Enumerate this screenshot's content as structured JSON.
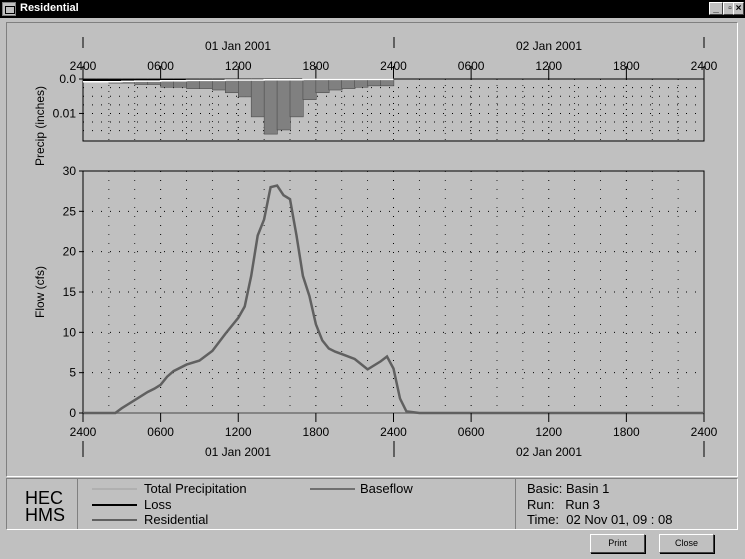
{
  "window": {
    "title": "Residential"
  },
  "top_axis": {
    "dates": [
      "01 Jan 2001",
      "02 Jan 2001"
    ],
    "tick_labels": [
      "2400",
      "0600",
      "1200",
      "1800",
      "2400",
      "0600",
      "1200",
      "1800",
      "2400"
    ]
  },
  "bottom_axis": {
    "dates": [
      "01 Jan 2001",
      "02 Jan 2001"
    ],
    "tick_labels": [
      "2400",
      "0600",
      "1200",
      "1800",
      "2400",
      "0600",
      "1200",
      "1800",
      "2400"
    ]
  },
  "legend": {
    "logo_line1": "HEC",
    "logo_line2": "HMS",
    "total_precip": "Total Precipitation",
    "loss": "Loss",
    "residential": "Residential",
    "baseflow": "Baseflow"
  },
  "info": {
    "basic": "Basic: Basin 1",
    "run": "Run:   Run 3",
    "time": "Time:  02 Nov 01, 09 : 08"
  },
  "buttons": {
    "print": "Print",
    "close": "Close"
  },
  "colors": {
    "precip_fill": "#808080",
    "loss_fill": "#000000",
    "flow_line": "#606060",
    "baseflow_line": "#707070"
  },
  "chart_data": [
    {
      "type": "area",
      "ylabel": "Precip (inches)",
      "y_ticks": [
        "0.0",
        "0.01"
      ],
      "ylim": [
        0.018,
        0.0
      ],
      "x_unit": "hours from 01 Jan 2001 00:00",
      "xlim": [
        0,
        48
      ],
      "grid": true,
      "series": [
        {
          "name": "Total Precipitation",
          "x": [
            0,
            1,
            2,
            3,
            4,
            5,
            6,
            7,
            8,
            9,
            10,
            11,
            12,
            13,
            14,
            15,
            16,
            17,
            18,
            19,
            20,
            21,
            22,
            23
          ],
          "values": [
            0.0008,
            0.0008,
            0.0012,
            0.0012,
            0.0016,
            0.0016,
            0.0024,
            0.0024,
            0.0028,
            0.0028,
            0.0032,
            0.004,
            0.0052,
            0.011,
            0.016,
            0.0148,
            0.011,
            0.006,
            0.004,
            0.0032,
            0.0028,
            0.0024,
            0.002,
            0.002
          ]
        },
        {
          "name": "Loss",
          "x": [
            0,
            1,
            2,
            3,
            4,
            5,
            6,
            7,
            8,
            9,
            10,
            11,
            12,
            13,
            14,
            15,
            16,
            17,
            18,
            19,
            20,
            21,
            22,
            23
          ],
          "values": [
            0.0008,
            0.0008,
            0.0008,
            0.0007,
            0.0006,
            0.0006,
            0.0005,
            0.0005,
            0.0004,
            0.0004,
            0.0004,
            0.0003,
            0.0003,
            0.0003,
            0.0002,
            0.0002,
            0.0002,
            0.0001,
            0.0001,
            0.0001,
            0.0001,
            0.0001,
            0.0001,
            0.0001
          ]
        }
      ]
    },
    {
      "type": "line",
      "ylabel": "Flow (cfs)",
      "y_ticks": [
        0,
        5,
        10,
        15,
        20,
        25,
        30
      ],
      "ylim": [
        0,
        30
      ],
      "xlim": [
        0,
        48
      ],
      "grid": true,
      "series": [
        {
          "name": "Residential",
          "x": [
            0,
            2.5,
            3,
            4,
            5,
            5.5,
            6,
            6.5,
            7,
            8,
            9,
            10,
            11,
            12,
            12.5,
            13,
            13.5,
            14,
            14.5,
            15,
            15.5,
            16,
            16.5,
            17,
            17.5,
            18,
            18.5,
            19,
            19.5,
            20,
            21,
            22,
            23,
            23.5,
            24,
            24.5,
            25,
            26,
            48
          ],
          "values": [
            0,
            0,
            0.6,
            1.6,
            2.6,
            3.0,
            3.5,
            4.5,
            5.2,
            6.0,
            6.5,
            7.7,
            9.8,
            11.8,
            13.2,
            17.0,
            22.0,
            24.0,
            28.0,
            28.2,
            27.0,
            26.5,
            22.0,
            17.0,
            14.5,
            11.0,
            9.0,
            8.0,
            7.6,
            7.3,
            6.7,
            5.4,
            6.4,
            7.0,
            5.5,
            1.8,
            0.2,
            0,
            0
          ]
        },
        {
          "name": "Baseflow",
          "x": [
            0,
            48
          ],
          "values": [
            0,
            0
          ]
        }
      ]
    }
  ]
}
